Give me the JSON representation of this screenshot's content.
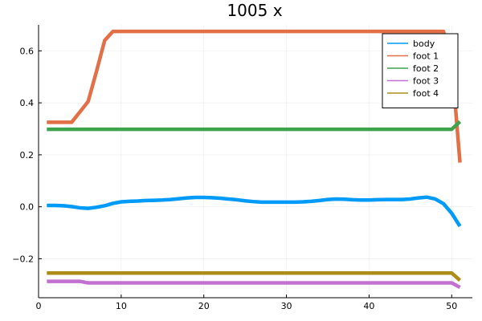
{
  "chart_data": {
    "type": "line",
    "title": "1005 x",
    "xlabel": "",
    "ylabel": "",
    "xlim": [
      0,
      52.5
    ],
    "ylim": [
      -0.35,
      0.7
    ],
    "xticks": [
      0,
      10,
      20,
      30,
      40,
      50
    ],
    "xtick_labels": [
      "0",
      "10",
      "20",
      "30",
      "40",
      "50"
    ],
    "yticks": [
      -0.2,
      0.0,
      0.2,
      0.4,
      0.6
    ],
    "ytick_labels": [
      "−0.2",
      "0.0",
      "0.2",
      "0.4",
      "0.6"
    ],
    "grid": true,
    "legend_position": "top-right",
    "x": [
      1,
      2,
      3,
      4,
      5,
      6,
      7,
      8,
      9,
      10,
      11,
      12,
      13,
      14,
      15,
      16,
      17,
      18,
      19,
      20,
      21,
      22,
      23,
      24,
      25,
      26,
      27,
      28,
      29,
      30,
      31,
      32,
      33,
      34,
      35,
      36,
      37,
      38,
      39,
      40,
      41,
      42,
      43,
      44,
      45,
      46,
      47,
      48,
      49,
      50,
      51
    ],
    "series": [
      {
        "name": "body",
        "color": "#009af9",
        "values": [
          0.005,
          0.005,
          0.004,
          0.001,
          -0.004,
          -0.006,
          -0.002,
          0.004,
          0.013,
          0.019,
          0.021,
          0.022,
          0.024,
          0.025,
          0.026,
          0.028,
          0.031,
          0.034,
          0.036,
          0.036,
          0.035,
          0.033,
          0.03,
          0.027,
          0.023,
          0.02,
          0.018,
          0.018,
          0.018,
          0.018,
          0.018,
          0.019,
          0.021,
          0.024,
          0.028,
          0.03,
          0.029,
          0.027,
          0.026,
          0.026,
          0.027,
          0.028,
          0.028,
          0.028,
          0.03,
          0.034,
          0.037,
          0.03,
          0.012,
          -0.025,
          -0.075
        ]
      },
      {
        "name": "foot 1",
        "color": "#e26f46",
        "values": [
          0.325,
          0.325,
          0.325,
          0.325,
          0.365,
          0.405,
          0.52,
          0.64,
          0.675,
          0.675,
          0.675,
          0.675,
          0.675,
          0.675,
          0.675,
          0.675,
          0.675,
          0.675,
          0.675,
          0.675,
          0.675,
          0.675,
          0.675,
          0.675,
          0.675,
          0.675,
          0.675,
          0.675,
          0.675,
          0.675,
          0.675,
          0.675,
          0.675,
          0.675,
          0.675,
          0.675,
          0.675,
          0.675,
          0.675,
          0.675,
          0.675,
          0.675,
          0.675,
          0.675,
          0.675,
          0.675,
          0.675,
          0.675,
          0.675,
          0.56,
          0.17
        ]
      },
      {
        "name": "foot 2",
        "color": "#3da44d",
        "values": [
          0.298,
          0.298,
          0.298,
          0.298,
          0.298,
          0.298,
          0.298,
          0.298,
          0.298,
          0.298,
          0.298,
          0.298,
          0.298,
          0.298,
          0.298,
          0.298,
          0.298,
          0.298,
          0.298,
          0.298,
          0.298,
          0.298,
          0.298,
          0.298,
          0.298,
          0.298,
          0.298,
          0.298,
          0.298,
          0.298,
          0.298,
          0.298,
          0.298,
          0.298,
          0.298,
          0.298,
          0.298,
          0.298,
          0.298,
          0.298,
          0.298,
          0.298,
          0.298,
          0.298,
          0.298,
          0.298,
          0.298,
          0.298,
          0.298,
          0.298,
          0.328
        ]
      },
      {
        "name": "foot 3",
        "color": "#c271d2",
        "values": [
          -0.287,
          -0.287,
          -0.287,
          -0.287,
          -0.287,
          -0.293,
          -0.293,
          -0.293,
          -0.293,
          -0.293,
          -0.293,
          -0.293,
          -0.293,
          -0.293,
          -0.293,
          -0.293,
          -0.293,
          -0.293,
          -0.293,
          -0.293,
          -0.293,
          -0.293,
          -0.293,
          -0.293,
          -0.293,
          -0.293,
          -0.293,
          -0.293,
          -0.293,
          -0.293,
          -0.293,
          -0.293,
          -0.293,
          -0.293,
          -0.293,
          -0.293,
          -0.293,
          -0.293,
          -0.293,
          -0.293,
          -0.293,
          -0.293,
          -0.293,
          -0.293,
          -0.293,
          -0.293,
          -0.293,
          -0.293,
          -0.293,
          -0.293,
          -0.31
        ]
      },
      {
        "name": "foot 4",
        "color": "#ac8d18",
        "values": [
          -0.255,
          -0.255,
          -0.255,
          -0.255,
          -0.255,
          -0.255,
          -0.255,
          -0.255,
          -0.255,
          -0.255,
          -0.255,
          -0.255,
          -0.255,
          -0.255,
          -0.255,
          -0.255,
          -0.255,
          -0.255,
          -0.255,
          -0.255,
          -0.255,
          -0.255,
          -0.255,
          -0.255,
          -0.255,
          -0.255,
          -0.255,
          -0.255,
          -0.255,
          -0.255,
          -0.255,
          -0.255,
          -0.255,
          -0.255,
          -0.255,
          -0.255,
          -0.255,
          -0.255,
          -0.255,
          -0.255,
          -0.255,
          -0.255,
          -0.255,
          -0.255,
          -0.255,
          -0.255,
          -0.255,
          -0.255,
          -0.255,
          -0.255,
          -0.283
        ]
      }
    ]
  }
}
